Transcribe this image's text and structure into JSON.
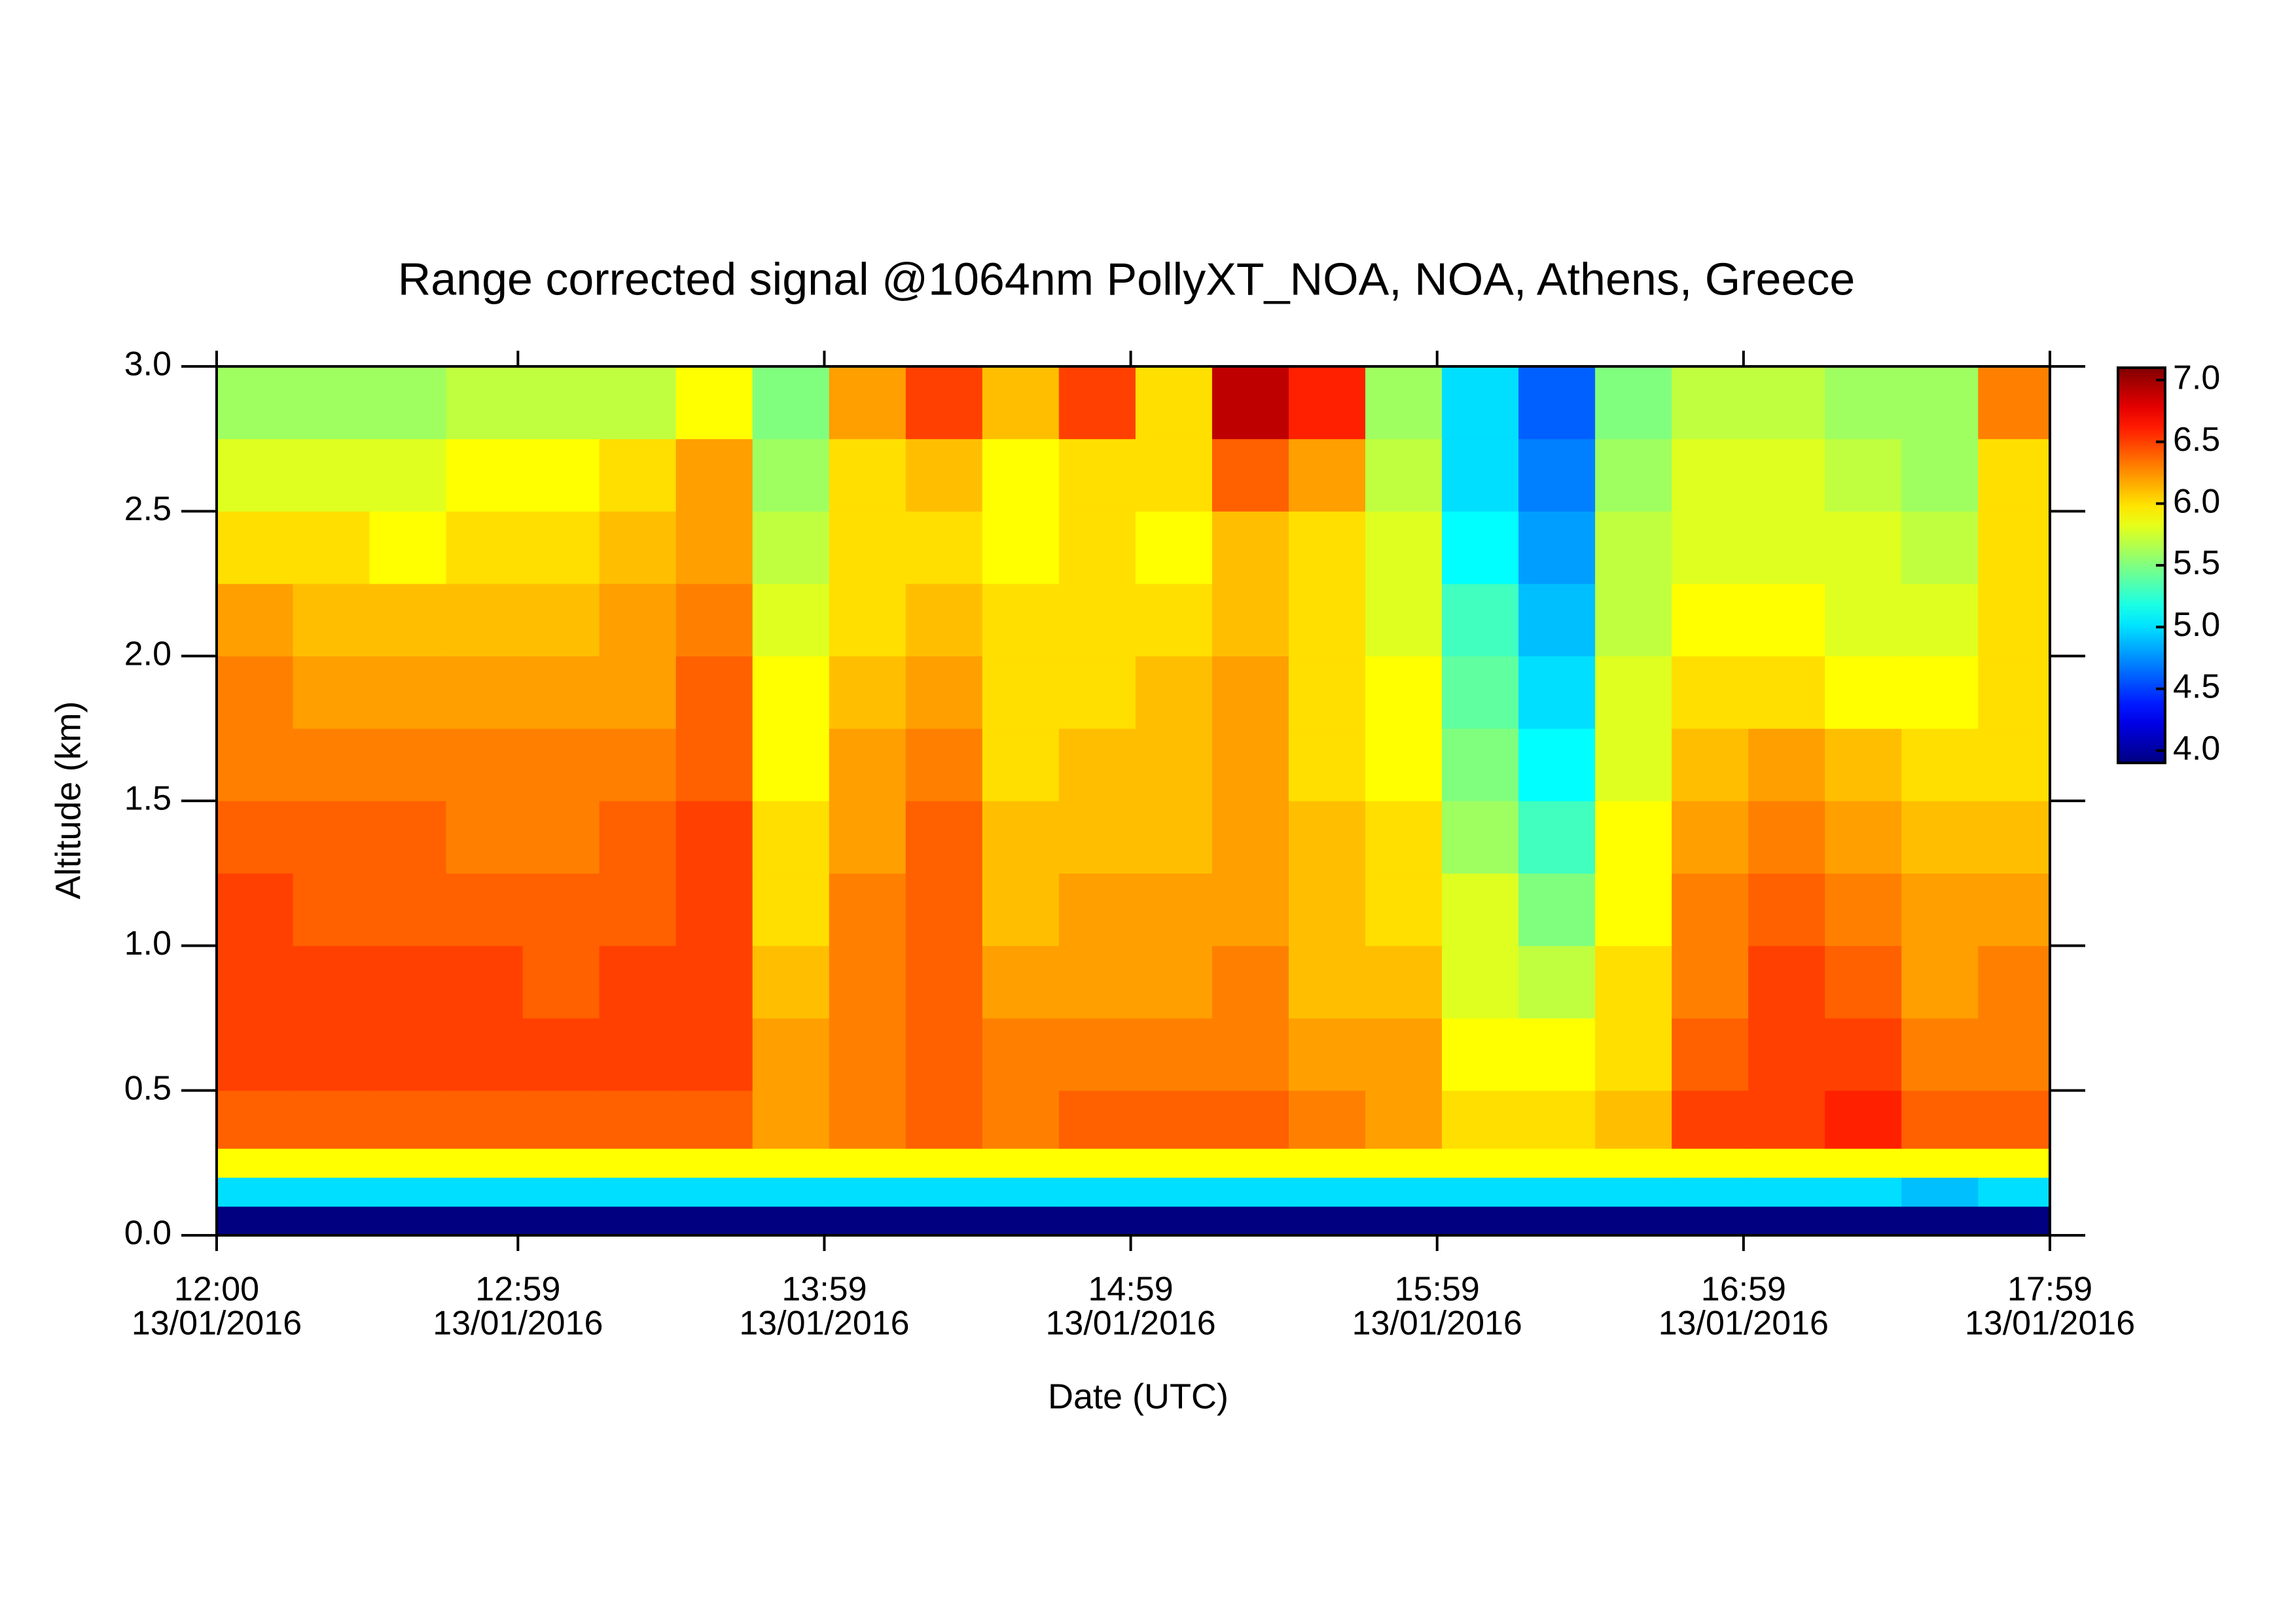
{
  "chart_data": {
    "type": "heatmap",
    "title": "Range corrected signal @1064nm  PollyXT_NOA, NOA, Athens, Greece",
    "x_label": "Date (UTC)",
    "y_label": "Altitude (km)",
    "colormap": "jet",
    "x": [
      "2016-01-13T12:00",
      "2016-01-13T12:15",
      "2016-01-13T12:30",
      "2016-01-13T12:45",
      "2016-01-13T13:00",
      "2016-01-13T13:15",
      "2016-01-13T13:30",
      "2016-01-13T13:45",
      "2016-01-13T14:00",
      "2016-01-13T14:15",
      "2016-01-13T14:30",
      "2016-01-13T14:45",
      "2016-01-13T15:00",
      "2016-01-13T15:15",
      "2016-01-13T15:30",
      "2016-01-13T15:45",
      "2016-01-13T16:00",
      "2016-01-13T16:15",
      "2016-01-13T16:30",
      "2016-01-13T16:45",
      "2016-01-13T17:00",
      "2016-01-13T17:15",
      "2016-01-13T17:30",
      "2016-01-13T17:45"
    ],
    "xlim": [
      "2016-01-13T12:00",
      "2016-01-13T17:59"
    ],
    "xticks": [
      {
        "value": "2016-01-13T12:00",
        "label": [
          "12:00",
          "13/01/2016"
        ]
      },
      {
        "value": "2016-01-13T12:59",
        "label": [
          "12:59",
          "13/01/2016"
        ]
      },
      {
        "value": "2016-01-13T13:59",
        "label": [
          "13:59",
          "13/01/2016"
        ]
      },
      {
        "value": "2016-01-13T14:59",
        "label": [
          "14:59",
          "13/01/2016"
        ]
      },
      {
        "value": "2016-01-13T15:59",
        "label": [
          "15:59",
          "13/01/2016"
        ]
      },
      {
        "value": "2016-01-13T16:59",
        "label": [
          "16:59",
          "13/01/2016"
        ]
      },
      {
        "value": "2016-01-13T17:59",
        "label": [
          "17:59",
          "13/01/2016"
        ]
      }
    ],
    "y": [
      0,
      0.1,
      0.2,
      0.3,
      0.5,
      0.75,
      1.0,
      1.25,
      1.5,
      1.75,
      2.0,
      2.25,
      2.5,
      2.75
    ],
    "ylim": [
      0,
      3
    ],
    "yticks": [
      {
        "value": 0,
        "label": "0.0"
      },
      0.5,
      {
        "value": 1,
        "label": "1.0"
      },
      1.5,
      {
        "value": 2,
        "label": "2.0"
      },
      2.5,
      {
        "value": 3,
        "label": "3.0"
      }
    ],
    "zlim": [
      3.9,
      7.1
    ],
    "zticks": [
      {
        "value": 4,
        "label": "4.0"
      },
      4.5,
      {
        "value": 5,
        "label": "5.0"
      },
      5.5,
      {
        "value": 6,
        "label": "6.0"
      },
      6.5,
      {
        "value": 7,
        "label": "7.0"
      }
    ],
    "z": [
      [
        3.9,
        3.9,
        3.9,
        3.9,
        3.9,
        3.9,
        3.9,
        3.9,
        3.9,
        3.9,
        3.9,
        3.9,
        3.9,
        3.9,
        3.9,
        3.9,
        3.9,
        3.9,
        3.9,
        3.9,
        3.9,
        3.9,
        3.9,
        3.9
      ],
      [
        5.0,
        5.0,
        5.0,
        5.0,
        5.0,
        5.0,
        5.0,
        5.0,
        5.0,
        5.0,
        5.0,
        5.0,
        5.0,
        5.0,
        5.0,
        5.0,
        5.0,
        5.0,
        5.0,
        5.0,
        5.0,
        5.0,
        4.9,
        5.0
      ],
      [
        5.9,
        5.9,
        5.9,
        5.9,
        5.9,
        5.9,
        5.9,
        5.9,
        5.9,
        5.9,
        5.9,
        5.9,
        5.9,
        5.9,
        5.9,
        5.9,
        5.9,
        5.9,
        5.9,
        5.9,
        5.9,
        5.9,
        5.9,
        5.9
      ],
      [
        6.4,
        6.4,
        6.4,
        6.4,
        6.4,
        6.4,
        6.4,
        6.2,
        6.3,
        6.4,
        6.3,
        6.4,
        6.4,
        6.4,
        6.3,
        6.2,
        6.0,
        6.0,
        6.1,
        6.5,
        6.5,
        6.6,
        6.4,
        6.4
      ],
      [
        6.5,
        6.5,
        6.5,
        6.5,
        6.5,
        6.5,
        6.5,
        6.2,
        6.3,
        6.4,
        6.3,
        6.3,
        6.3,
        6.3,
        6.2,
        6.2,
        5.9,
        5.9,
        6.0,
        6.4,
        6.5,
        6.5,
        6.3,
        6.3
      ],
      [
        6.5,
        6.5,
        6.5,
        6.5,
        6.4,
        6.5,
        6.5,
        6.1,
        6.3,
        6.4,
        6.2,
        6.2,
        6.2,
        6.3,
        6.1,
        6.1,
        5.8,
        5.7,
        6.0,
        6.3,
        6.5,
        6.4,
        6.2,
        6.3
      ],
      [
        6.5,
        6.4,
        6.4,
        6.4,
        6.4,
        6.4,
        6.5,
        6.0,
        6.3,
        6.4,
        6.1,
        6.2,
        6.2,
        6.2,
        6.1,
        6.0,
        5.8,
        5.5,
        5.9,
        6.3,
        6.4,
        6.3,
        6.2,
        6.2
      ],
      [
        6.4,
        6.4,
        6.4,
        6.3,
        6.3,
        6.4,
        6.5,
        6.0,
        6.2,
        6.4,
        6.1,
        6.1,
        6.1,
        6.2,
        6.1,
        6.0,
        5.6,
        5.3,
        5.9,
        6.2,
        6.3,
        6.2,
        6.1,
        6.1
      ],
      [
        6.3,
        6.3,
        6.3,
        6.3,
        6.3,
        6.3,
        6.4,
        5.9,
        6.2,
        6.3,
        6.0,
        6.1,
        6.1,
        6.2,
        6.0,
        5.9,
        5.5,
        5.1,
        5.8,
        6.1,
        6.2,
        6.1,
        6.0,
        6.0
      ],
      [
        6.3,
        6.2,
        6.2,
        6.2,
        6.2,
        6.2,
        6.4,
        5.9,
        6.1,
        6.2,
        6.0,
        6.0,
        6.1,
        6.2,
        6.0,
        5.9,
        5.4,
        5.0,
        5.8,
        6.0,
        6.0,
        5.9,
        5.9,
        6.0
      ],
      [
        6.2,
        6.1,
        6.1,
        6.1,
        6.1,
        6.2,
        6.3,
        5.8,
        6.0,
        6.1,
        6.0,
        6.0,
        6.0,
        6.1,
        6.0,
        5.8,
        5.3,
        4.9,
        5.7,
        5.9,
        5.9,
        5.8,
        5.8,
        6.0
      ],
      [
        6.0,
        6.0,
        5.9,
        6.0,
        6.0,
        6.1,
        6.2,
        5.7,
        6.0,
        6.0,
        5.9,
        6.0,
        5.9,
        6.1,
        6.0,
        5.8,
        5.1,
        4.8,
        5.7,
        5.8,
        5.8,
        5.8,
        5.7,
        6.0
      ],
      [
        5.8,
        5.8,
        5.8,
        5.9,
        5.9,
        6.0,
        6.2,
        5.6,
        6.0,
        6.1,
        5.9,
        6.0,
        6.0,
        6.4,
        6.2,
        5.7,
        5.0,
        4.7,
        5.6,
        5.8,
        5.8,
        5.7,
        5.6,
        6.0
      ],
      [
        5.6,
        5.6,
        5.6,
        5.7,
        5.7,
        5.7,
        5.9,
        5.5,
        6.2,
        6.5,
        6.1,
        6.5,
        6.0,
        6.9,
        6.6,
        5.6,
        5.0,
        4.6,
        5.5,
        5.7,
        5.7,
        5.6,
        5.6,
        6.3
      ]
    ]
  }
}
